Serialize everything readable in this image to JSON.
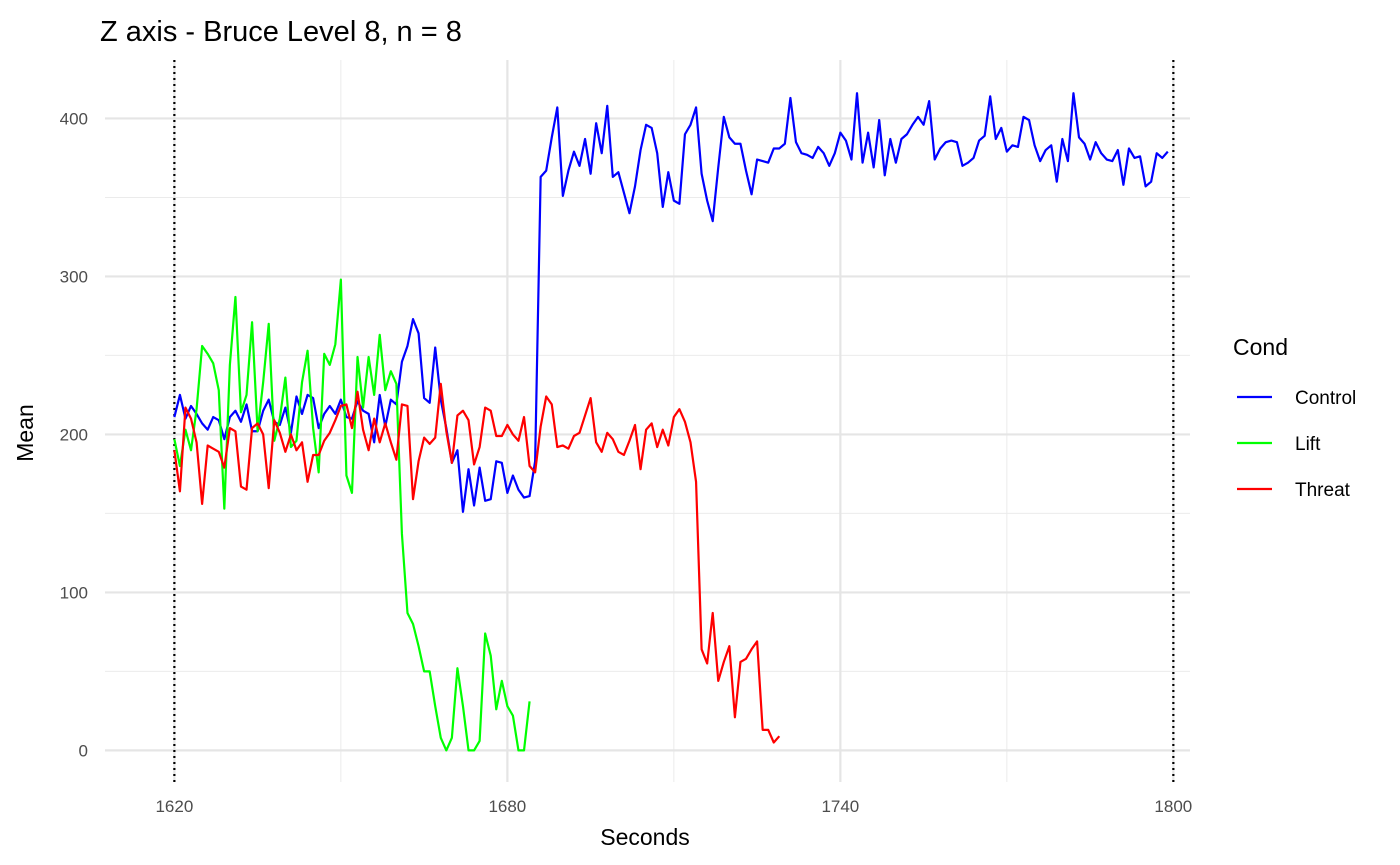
{
  "chart_data": {
    "type": "line",
    "title": "Z axis - Bruce Level 8, n =  8",
    "xlabel": "Seconds",
    "ylabel": "Mean",
    "xlim": [
      1607.5,
      1803
    ],
    "ylim": [
      -20,
      437
    ],
    "xticks": [
      1620,
      1680,
      1740,
      1800
    ],
    "yticks": [
      0,
      100,
      200,
      300,
      400
    ],
    "grid": true,
    "vlines": [
      1620,
      1800
    ],
    "legend": {
      "title": "Cond",
      "position": "right"
    },
    "colors": {
      "Control": "#0000ff",
      "Lift": "#00ff00",
      "Threat": "#ff0000"
    },
    "series": [
      {
        "name": "Control",
        "color": "#0000ff",
        "x_start": 1620,
        "x_step": 1,
        "values": [
          211,
          225,
          210,
          218,
          213,
          207,
          203,
          211,
          209,
          197,
          211,
          215,
          208,
          219,
          202,
          202,
          215,
          222,
          208,
          206,
          217,
          201,
          224,
          213,
          225,
          223,
          204,
          213,
          218,
          213,
          222,
          211,
          210,
          221,
          215,
          213,
          195,
          225,
          205,
          222,
          219,
          246,
          256,
          273,
          264,
          223,
          220,
          255,
          222,
          204,
          182,
          190,
          151,
          178,
          155,
          179,
          158,
          159,
          183,
          182,
          163,
          174,
          165,
          160,
          161,
          183,
          363,
          367,
          388,
          407,
          351,
          367,
          379,
          370,
          387,
          365,
          397,
          378,
          408,
          363,
          366,
          353,
          340,
          357,
          380,
          396,
          394,
          378,
          344,
          366,
          348,
          346,
          390,
          396,
          407,
          365,
          348,
          335,
          369,
          401,
          388,
          384,
          384,
          367,
          352,
          374,
          373,
          372,
          381,
          381,
          384,
          413,
          385,
          378,
          377,
          375,
          382,
          378,
          370,
          378,
          391,
          386,
          374,
          416,
          372,
          391,
          369,
          399,
          364,
          387,
          372,
          387,
          390,
          396,
          401,
          396,
          411,
          374,
          381,
          385,
          386,
          385,
          370,
          372,
          375,
          386,
          389,
          414,
          387,
          394,
          379,
          383,
          382,
          401,
          399,
          383,
          373,
          380,
          383,
          360,
          387,
          373,
          416,
          388,
          384,
          374,
          385,
          378,
          374,
          373,
          380,
          358,
          381,
          375,
          376,
          357,
          360,
          378,
          375,
          379
        ]
      },
      {
        "name": "Lift",
        "color": "#00ff00",
        "x_start": 1620,
        "x_step": 1,
        "values": [
          197,
          180,
          203,
          190,
          216,
          256,
          251,
          245,
          228,
          153,
          244,
          287,
          214,
          225,
          271,
          202,
          233,
          270,
          196,
          210,
          236,
          192,
          196,
          233,
          253,
          204,
          176,
          251,
          244,
          257,
          298,
          174,
          163,
          249,
          217,
          249,
          225,
          263,
          228,
          240,
          232,
          137,
          87,
          80,
          66,
          50,
          50,
          28,
          8,
          0,
          8,
          52,
          28,
          0,
          0,
          6,
          74,
          60,
          26,
          44,
          28,
          22,
          0,
          0,
          31
        ]
      },
      {
        "name": "Threat",
        "color": "#ff0000",
        "x_start": 1620,
        "x_step": 1,
        "values": [
          190,
          164,
          217,
          210,
          195,
          156,
          193,
          191,
          189,
          179,
          204,
          202,
          167,
          165,
          204,
          207,
          200,
          166,
          209,
          201,
          189,
          200,
          190,
          195,
          170,
          187,
          187,
          196,
          201,
          209,
          218,
          219,
          204,
          227,
          203,
          190,
          210,
          195,
          207,
          195,
          184,
          219,
          218,
          159,
          183,
          198,
          194,
          198,
          232,
          202,
          182,
          212,
          215,
          209,
          181,
          192,
          217,
          215,
          199,
          199,
          206,
          200,
          196,
          211,
          180,
          176,
          205,
          224,
          219,
          192,
          193,
          191,
          199,
          201,
          212,
          223,
          195,
          189,
          201,
          197,
          189,
          187,
          196,
          206,
          178,
          203,
          207,
          192,
          203,
          193,
          211,
          216,
          208,
          195,
          170,
          64,
          55,
          87,
          44,
          56,
          66,
          21,
          56,
          58,
          64,
          69,
          13,
          13,
          5,
          9
        ]
      }
    ]
  }
}
